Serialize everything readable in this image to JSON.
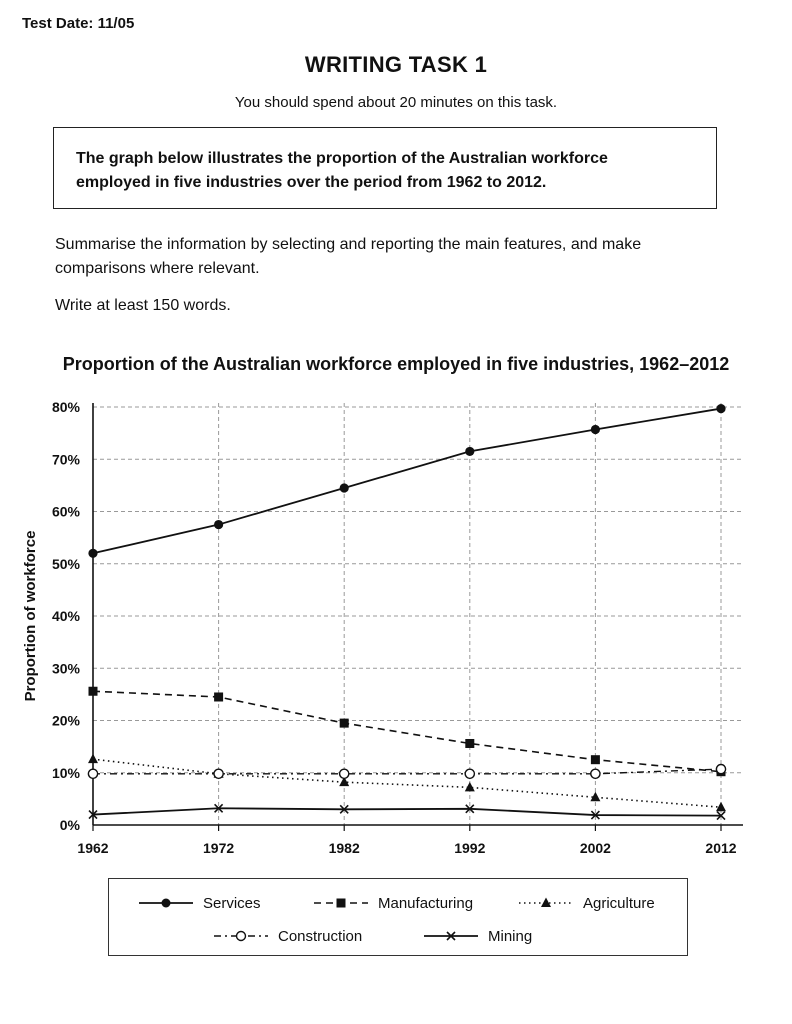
{
  "header": {
    "test_date": "Test Date: 11/05",
    "task_title": "WRITING TASK 1",
    "task_subtitle": "You should spend about 20 minutes on this task."
  },
  "prompt": {
    "line1": "The graph below illustrates the proportion of the Australian workforce",
    "line2": "employed in five industries over the period from 1962 to 2012."
  },
  "instructions": {
    "summary": "Summarise the information by selecting and reporting the main features, and make comparisons where relevant.",
    "word_count": "Write at least 150 words."
  },
  "chart_data": {
    "type": "line",
    "title": "Proportion of the Australian workforce employed in five industries, 1962–2012",
    "xlabel": "",
    "ylabel": "Proportion of workforce",
    "x": [
      "1962",
      "1972",
      "1982",
      "1992",
      "2002",
      "2012"
    ],
    "y_ticks": [
      "0%",
      "10%",
      "20%",
      "30%",
      "40%",
      "50%",
      "60%",
      "70%",
      "80%"
    ],
    "ylim": [
      0,
      80
    ],
    "grid": true,
    "legend_position": "bottom",
    "series": [
      {
        "name": "Services",
        "values": [
          52,
          57.5,
          64.5,
          71.5,
          75.7,
          79.7
        ],
        "style": "solid",
        "marker": "filled-circle"
      },
      {
        "name": "Manufacturing",
        "values": [
          25.6,
          24.5,
          19.5,
          15.6,
          12.5,
          10.2
        ],
        "style": "dashed",
        "marker": "filled-square"
      },
      {
        "name": "Agriculture",
        "values": [
          12.6,
          9.8,
          8.2,
          7.2,
          5.3,
          3.4
        ],
        "style": "dotted",
        "marker": "filled-triangle"
      },
      {
        "name": "Construction",
        "values": [
          9.8,
          9.8,
          9.8,
          9.8,
          9.8,
          10.7
        ],
        "style": "dash-dot",
        "marker": "open-circle"
      },
      {
        "name": "Mining",
        "values": [
          2,
          3.2,
          3,
          3.1,
          1.9,
          1.8
        ],
        "style": "solid",
        "marker": "cross"
      }
    ]
  }
}
